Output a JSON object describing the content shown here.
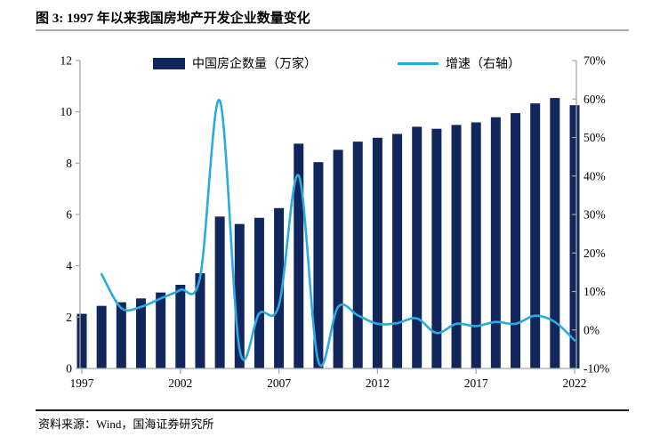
{
  "header": {
    "title": "图 3: 1997 年以来我国房地产开发企业数量变化"
  },
  "legend": {
    "bar_label": "中国房企数量（万家）",
    "line_label": "增速（右轴）"
  },
  "footer": {
    "source": "资料来源：Wind，国海证券研究所"
  },
  "colors": {
    "bar": "#12265e",
    "line": "#29abe2",
    "axis": "#a6a6a6",
    "text": "#000000"
  },
  "chart_data": {
    "type": "bar",
    "subtype": "bar-line-combo",
    "title": "图 3: 1997 年以来我国房地产开发企业数量变化",
    "categories": [
      1997,
      1998,
      1999,
      2000,
      2001,
      2002,
      2003,
      2004,
      2005,
      2006,
      2007,
      2008,
      2009,
      2010,
      2011,
      2012,
      2013,
      2014,
      2015,
      2016,
      2017,
      2018,
      2019,
      2020,
      2021,
      2022
    ],
    "x_tick_labels": [
      "1997",
      "2002",
      "2007",
      "2012",
      "2017",
      "2022"
    ],
    "series": [
      {
        "name": "中国房企数量（万家）",
        "type": "bar",
        "axis": "left",
        "color": "#12265e",
        "values": [
          2.13,
          2.44,
          2.58,
          2.73,
          2.96,
          3.26,
          3.71,
          5.92,
          5.63,
          5.87,
          6.25,
          8.76,
          8.04,
          8.52,
          8.84,
          8.99,
          9.14,
          9.42,
          9.34,
          9.49,
          9.59,
          9.79,
          9.95,
          10.33,
          10.54,
          10.26
        ]
      },
      {
        "name": "增速（右轴）",
        "type": "line",
        "axis": "right",
        "color": "#29abe2",
        "values": [
          null,
          14.5,
          5.7,
          6.0,
          8.2,
          10.4,
          13.8,
          59.6,
          -5.0,
          4.3,
          6.5,
          40.1,
          -8.2,
          6.0,
          3.8,
          1.6,
          1.8,
          3.0,
          -0.8,
          1.6,
          1.0,
          2.1,
          1.6,
          3.7,
          2.1,
          -2.7
        ]
      }
    ],
    "left_axis": {
      "min": 0,
      "max": 12,
      "step": 2,
      "tick_labels": [
        "0",
        "2",
        "4",
        "6",
        "8",
        "10",
        "12"
      ]
    },
    "right_axis": {
      "min": -10,
      "max": 70,
      "step": 10,
      "suffix": "%",
      "tick_labels": [
        "-10%",
        "0%",
        "10%",
        "20%",
        "30%",
        "40%",
        "50%",
        "60%",
        "70%"
      ]
    },
    "grid": false,
    "legend_position": "top"
  }
}
